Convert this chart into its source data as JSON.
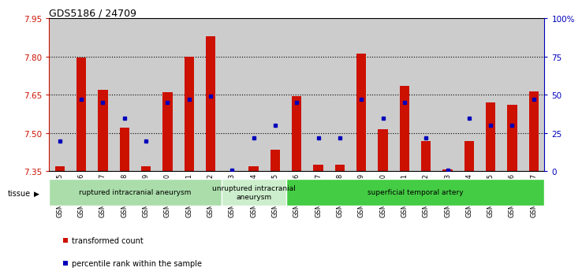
{
  "title": "GDS5186 / 24709",
  "samples": [
    "GSM1306885",
    "GSM1306886",
    "GSM1306887",
    "GSM1306888",
    "GSM1306889",
    "GSM1306890",
    "GSM1306891",
    "GSM1306892",
    "GSM1306893",
    "GSM1306894",
    "GSM1306895",
    "GSM1306896",
    "GSM1306897",
    "GSM1306898",
    "GSM1306899",
    "GSM1306900",
    "GSM1306901",
    "GSM1306902",
    "GSM1306903",
    "GSM1306904",
    "GSM1306905",
    "GSM1306906",
    "GSM1306907"
  ],
  "red_values": [
    7.37,
    7.795,
    7.67,
    7.52,
    7.37,
    7.66,
    7.8,
    7.88,
    7.352,
    7.37,
    7.435,
    7.645,
    7.375,
    7.375,
    7.812,
    7.515,
    7.685,
    7.47,
    7.357,
    7.47,
    7.62,
    7.61,
    7.665
  ],
  "blue_pct": [
    20,
    47,
    45,
    35,
    20,
    45,
    47,
    49,
    1,
    22,
    30,
    45,
    22,
    22,
    47,
    35,
    45,
    22,
    1,
    35,
    30,
    30,
    47
  ],
  "ymin": 7.35,
  "ymax": 7.95,
  "yticks": [
    7.35,
    7.5,
    7.65,
    7.8,
    7.95
  ],
  "y2min": 0,
  "y2max": 100,
  "y2ticks": [
    0,
    25,
    50,
    75,
    100
  ],
  "groups": [
    {
      "label": "ruptured intracranial aneurysm",
      "start": 0,
      "end": 7,
      "color": "#AADDAA"
    },
    {
      "label": "unruptured intracranial\naneurysm",
      "start": 8,
      "end": 10,
      "color": "#CCEECC"
    },
    {
      "label": "superficial temporal artery",
      "start": 11,
      "end": 22,
      "color": "#44CC44"
    }
  ],
  "bar_color": "#CC1100",
  "dot_color": "#0000BB",
  "col_bg": "#CCCCCC",
  "plot_bg": "#FFFFFF",
  "ylabel_color": "#CC1100",
  "y2label_color": "#0000BB"
}
